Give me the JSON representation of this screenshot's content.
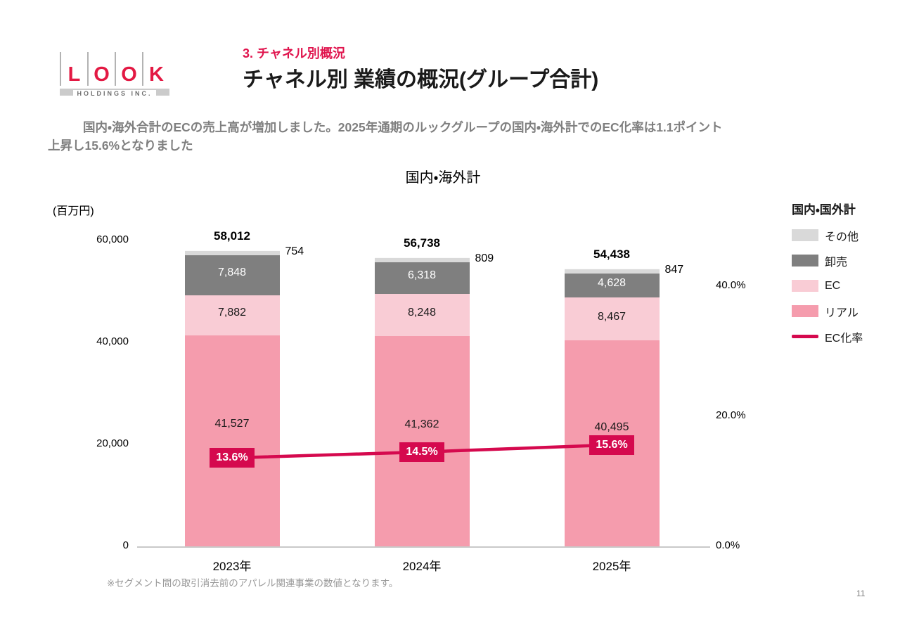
{
  "logo": {
    "letters": [
      "L",
      "O",
      "O",
      "K"
    ],
    "subtitle": "HOLDINGS INC."
  },
  "header": {
    "section": "3. チャネル別概況",
    "title": "チャネル別 業績の概況(グループ合計)"
  },
  "summary": {
    "line1": "国内・海外合計のECの売上高が増加しました。2025年通期のルックグループの国内・海外計でのEC化率は1.1ポイント",
    "line2": "上昇し15.6%となりました"
  },
  "chart_data": {
    "type": "bar",
    "title": "国内・海外計",
    "unit_label": "(百万円)",
    "categories": [
      "2023年",
      "2024年",
      "2025年"
    ],
    "series": [
      {
        "name": "リアル",
        "color": "#F59CAD",
        "label_color": "#1a1a1a",
        "values": [
          41527,
          41362,
          40495
        ]
      },
      {
        "name": "EC",
        "color": "#F9CCD5",
        "label_color": "#1a1a1a",
        "values": [
          7882,
          8248,
          8467
        ]
      },
      {
        "name": "卸売",
        "color": "#7F7F7F",
        "label_color": "#ffffff",
        "values": [
          7848,
          6318,
          4628
        ]
      },
      {
        "name": "その他",
        "color": "#D9D9D9",
        "label_color": "#1a1a1a",
        "values": [
          754,
          809,
          847
        ]
      }
    ],
    "totals": [
      58012,
      56738,
      54438
    ],
    "line_series": {
      "name": "EC化率",
      "color": "#D5094E",
      "values": [
        13.6,
        14.5,
        15.6
      ],
      "labels": [
        "13.6%",
        "14.5%",
        "15.6%"
      ]
    },
    "left_axis": {
      "ticks": [
        "60,000",
        "40,000",
        "20,000",
        "0"
      ],
      "max": 60000
    },
    "right_axis": {
      "ticks": [
        "40.0%",
        "20.0%",
        "0.0%"
      ]
    },
    "legend": {
      "title": "国内・国外計",
      "items": [
        {
          "label": "その他",
          "color": "#D9D9D9",
          "type": "box"
        },
        {
          "label": "卸売",
          "color": "#7F7F7F",
          "type": "box"
        },
        {
          "label": "EC",
          "color": "#F9CCD5",
          "type": "box"
        },
        {
          "label": "リアル",
          "color": "#F59CAD",
          "type": "box"
        },
        {
          "label": "EC化率",
          "color": "#D5094E",
          "type": "line"
        }
      ]
    }
  },
  "footnote": "※セグメント間の取引消去前のアパレル関連事業の数値となります。",
  "page_number": "11"
}
